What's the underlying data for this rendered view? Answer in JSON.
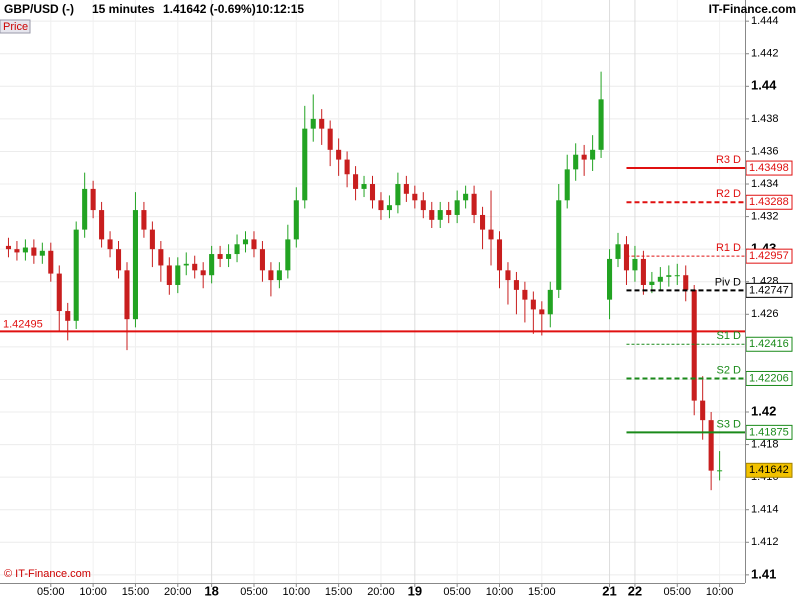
{
  "chart_data": {
    "type": "candlestick",
    "header": {
      "symbol": "GBP/USD (-)",
      "interval": "15 minutes",
      "quote": "1.41642 (-0.69%)",
      "time": "10:12:15",
      "brand": "IT-Finance.com"
    },
    "price_tag": "Price",
    "copyright": "© IT-Finance.com",
    "up_color": "#22a322",
    "down_color": "#c81e1e",
    "grid": true,
    "ylim": [
      1.4095,
      1.4453
    ],
    "yticks": [
      1.41,
      1.412,
      1.414,
      1.416,
      1.418,
      1.42,
      1.422,
      1.424,
      1.426,
      1.428,
      1.43,
      1.432,
      1.434,
      1.436,
      1.438,
      1.44,
      1.442,
      1.444
    ],
    "categories": [
      null,
      null,
      null,
      null,
      null,
      "05:00",
      null,
      null,
      null,
      null,
      "10:00",
      null,
      null,
      null,
      null,
      "15:00",
      null,
      null,
      null,
      null,
      "20:00",
      null,
      null,
      null,
      "18",
      null,
      null,
      null,
      null,
      "05:00",
      null,
      null,
      null,
      null,
      "10:00",
      null,
      null,
      null,
      null,
      "15:00",
      null,
      null,
      null,
      null,
      "20:00",
      null,
      null,
      null,
      "19",
      null,
      null,
      null,
      null,
      "05:00",
      null,
      null,
      null,
      null,
      "10:00",
      null,
      null,
      null,
      null,
      "15:00",
      null,
      null,
      null,
      null,
      null,
      null,
      null,
      "21",
      null,
      null,
      "22",
      null,
      null,
      null,
      null,
      "05:00",
      null,
      null,
      null,
      null,
      "10:00"
    ],
    "open": [
      1.4302,
      1.43,
      1.4298,
      1.4301,
      1.4296,
      1.4299,
      1.4285,
      1.4262,
      1.4256,
      1.4312,
      1.4337,
      1.4324,
      1.4306,
      1.43,
      1.4287,
      1.4257,
      1.4324,
      1.4312,
      1.43,
      1.429,
      1.4278,
      1.429,
      1.4291,
      1.4287,
      1.4284,
      1.4297,
      1.4294,
      1.4297,
      1.4303,
      1.4306,
      1.43,
      1.4287,
      1.4281,
      1.4287,
      1.4306,
      1.433,
      1.4374,
      1.438,
      1.4374,
      1.4361,
      1.4355,
      1.4346,
      1.4337,
      1.434,
      1.433,
      1.4324,
      1.4327,
      1.434,
      1.4334,
      1.433,
      1.4324,
      1.4318,
      1.4324,
      1.4321,
      1.433,
      1.4334,
      1.4321,
      1.4312,
      1.4306,
      1.4287,
      1.4281,
      1.4275,
      1.4269,
      1.4263,
      1.426,
      1.4275,
      1.433,
      1.4349,
      1.4358,
      1.4355,
      1.4361,
      1.4269,
      1.4294,
      1.4303,
      1.4287,
      1.4294,
      1.4278,
      1.428,
      1.4283,
      1.4284,
      1.4284,
      1.4275,
      1.4207,
      1.4195,
      1.4164
    ],
    "high": [
      1.4307,
      1.4305,
      1.4306,
      1.4306,
      1.4304,
      1.4304,
      1.429,
      1.4267,
      1.4317,
      1.4347,
      1.4342,
      1.4329,
      1.4311,
      1.4305,
      1.4292,
      1.4335,
      1.4329,
      1.4317,
      1.4305,
      1.4295,
      1.4295,
      1.4298,
      1.4296,
      1.4292,
      1.4302,
      1.4302,
      1.4303,
      1.4309,
      1.4311,
      1.4311,
      1.4305,
      1.4292,
      1.4292,
      1.4315,
      1.4338,
      1.4388,
      1.4395,
      1.4386,
      1.4379,
      1.4368,
      1.436,
      1.4351,
      1.4345,
      1.4345,
      1.4335,
      1.4333,
      1.4347,
      1.4345,
      1.4339,
      1.4335,
      1.4329,
      1.4329,
      1.4329,
      1.4336,
      1.4339,
      1.4339,
      1.4326,
      1.4336,
      1.4311,
      1.4292,
      1.4286,
      1.428,
      1.4274,
      1.4268,
      1.428,
      1.434,
      1.4358,
      1.4365,
      1.4364,
      1.437,
      1.4409,
      1.43,
      1.431,
      1.4308,
      1.4302,
      1.4299,
      1.4286,
      1.4289,
      1.429,
      1.4291,
      1.429,
      1.4278,
      1.4222,
      1.42,
      1.4176
    ],
    "low": [
      1.4295,
      1.4293,
      1.4293,
      1.4291,
      1.4291,
      1.428,
      1.425,
      1.4244,
      1.4251,
      1.4307,
      1.4319,
      1.4301,
      1.4295,
      1.4282,
      1.4238,
      1.4252,
      1.4307,
      1.4289,
      1.428,
      1.4272,
      1.4273,
      1.4284,
      1.4282,
      1.4276,
      1.4279,
      1.4289,
      1.4289,
      1.4292,
      1.4298,
      1.4295,
      1.428,
      1.4271,
      1.4276,
      1.4282,
      1.4301,
      1.4325,
      1.4366,
      1.4364,
      1.4351,
      1.4345,
      1.4338,
      1.433,
      1.4332,
      1.4325,
      1.4318,
      1.4319,
      1.4322,
      1.4329,
      1.4325,
      1.4319,
      1.4313,
      1.4313,
      1.4316,
      1.4316,
      1.4325,
      1.4316,
      1.43,
      1.429,
      1.4276,
      1.4266,
      1.426,
      1.4255,
      1.4248,
      1.4247,
      1.4252,
      1.427,
      1.4325,
      1.4342,
      1.4345,
      1.4348,
      1.4356,
      1.4257,
      1.4289,
      1.4278,
      1.428,
      1.4272,
      1.4273,
      1.4275,
      1.4277,
      1.4278,
      1.4268,
      1.4198,
      1.4183,
      1.4152,
      1.4158
    ],
    "close": [
      1.43,
      1.4298,
      1.4301,
      1.4296,
      1.4299,
      1.4285,
      1.4262,
      1.4256,
      1.4312,
      1.4337,
      1.4324,
      1.4306,
      1.43,
      1.4287,
      1.4257,
      1.4324,
      1.4312,
      1.43,
      1.429,
      1.4278,
      1.429,
      1.4291,
      1.4287,
      1.4284,
      1.4297,
      1.4294,
      1.4297,
      1.4303,
      1.4306,
      1.43,
      1.4287,
      1.4281,
      1.4287,
      1.4306,
      1.433,
      1.4374,
      1.438,
      1.4374,
      1.4361,
      1.4355,
      1.4346,
      1.4337,
      1.434,
      1.433,
      1.4324,
      1.4327,
      1.434,
      1.4334,
      1.433,
      1.4324,
      1.4318,
      1.4324,
      1.4321,
      1.433,
      1.4334,
      1.4321,
      1.4312,
      1.4306,
      1.4287,
      1.4281,
      1.4275,
      1.4269,
      1.4263,
      1.426,
      1.4275,
      1.433,
      1.4349,
      1.4358,
      1.4355,
      1.4361,
      1.4392,
      1.4294,
      1.4303,
      1.4287,
      1.4294,
      1.4278,
      1.428,
      1.4283,
      1.4284,
      1.4284,
      1.4275,
      1.4207,
      1.4195,
      1.4164,
      1.41642
    ],
    "last_color": "#f2c200",
    "support_line": {
      "value": 1.42495,
      "color": "#e01010"
    },
    "levels": [
      {
        "name": "R3 D",
        "value": 1.43498,
        "color": "#e01010",
        "style": "solid"
      },
      {
        "name": "R2 D",
        "value": 1.43288,
        "color": "#e01010",
        "style": "dashed"
      },
      {
        "name": "R1 D",
        "value": 1.42957,
        "color": "#e01010",
        "style": "dotted"
      },
      {
        "name": "Piv D",
        "value": 1.42747,
        "color": "#000000",
        "style": "dashed"
      },
      {
        "name": "S1 D",
        "value": 1.42416,
        "color": "#1a8a1a",
        "style": "dotted"
      },
      {
        "name": "S2 D",
        "value": 1.42206,
        "color": "#1a8a1a",
        "style": "dashed"
      },
      {
        "name": "S3 D",
        "value": 1.41875,
        "color": "#1a8a1a",
        "style": "solid"
      }
    ]
  }
}
